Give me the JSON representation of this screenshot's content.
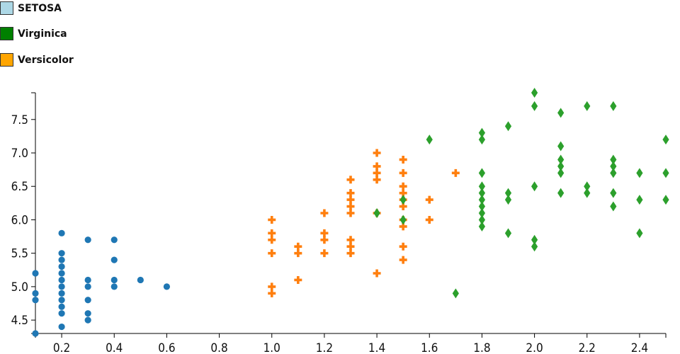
{
  "legend": [
    {
      "label": "SETOSA",
      "color": "#add8e6"
    },
    {
      "label": "Virginica",
      "color": "#008000"
    },
    {
      "label": "Versicolor",
      "color": "#ffa500"
    }
  ],
  "chart_data": {
    "type": "scatter",
    "title": "",
    "xlabel": "",
    "ylabel": "",
    "xlim": [
      0.1,
      2.5
    ],
    "ylim": [
      4.3,
      7.9
    ],
    "xticks": [
      "0.2",
      "0.4",
      "0.6",
      "0.8",
      "1.0",
      "1.2",
      "1.4",
      "1.6",
      "1.8",
      "2.0",
      "2.2",
      "2.4"
    ],
    "yticks": [
      "4.5",
      "5.0",
      "5.5",
      "6.0",
      "6.5",
      "7.0",
      "7.5"
    ],
    "series": [
      {
        "name": "SETOSA",
        "marker": "circle",
        "color": "#1f77b4",
        "points": [
          [
            0.1,
            4.3
          ],
          [
            0.1,
            4.8
          ],
          [
            0.1,
            4.9
          ],
          [
            0.1,
            5.2
          ],
          [
            0.2,
            4.4
          ],
          [
            0.2,
            4.6
          ],
          [
            0.2,
            4.7
          ],
          [
            0.2,
            4.8
          ],
          [
            0.2,
            4.9
          ],
          [
            0.2,
            5.0
          ],
          [
            0.2,
            5.1
          ],
          [
            0.2,
            5.2
          ],
          [
            0.2,
            5.3
          ],
          [
            0.2,
            5.4
          ],
          [
            0.2,
            5.5
          ],
          [
            0.2,
            5.8
          ],
          [
            0.3,
            4.5
          ],
          [
            0.3,
            4.6
          ],
          [
            0.3,
            4.8
          ],
          [
            0.3,
            5.0
          ],
          [
            0.3,
            5.1
          ],
          [
            0.3,
            5.7
          ],
          [
            0.4,
            5.0
          ],
          [
            0.4,
            5.1
          ],
          [
            0.4,
            5.4
          ],
          [
            0.4,
            5.7
          ],
          [
            0.5,
            5.1
          ],
          [
            0.6,
            5.0
          ]
        ]
      },
      {
        "name": "Versicolor",
        "marker": "plus",
        "color": "#ff7f0e",
        "points": [
          [
            1.0,
            4.9
          ],
          [
            1.0,
            5.0
          ],
          [
            1.0,
            5.5
          ],
          [
            1.0,
            5.7
          ],
          [
            1.0,
            5.8
          ],
          [
            1.0,
            6.0
          ],
          [
            1.1,
            5.1
          ],
          [
            1.1,
            5.5
          ],
          [
            1.1,
            5.6
          ],
          [
            1.2,
            5.5
          ],
          [
            1.2,
            5.7
          ],
          [
            1.2,
            5.8
          ],
          [
            1.2,
            6.1
          ],
          [
            1.3,
            5.5
          ],
          [
            1.3,
            5.6
          ],
          [
            1.3,
            5.7
          ],
          [
            1.3,
            6.1
          ],
          [
            1.3,
            6.2
          ],
          [
            1.3,
            6.3
          ],
          [
            1.3,
            6.4
          ],
          [
            1.3,
            6.6
          ],
          [
            1.4,
            5.2
          ],
          [
            1.4,
            6.1
          ],
          [
            1.4,
            6.6
          ],
          [
            1.4,
            6.7
          ],
          [
            1.4,
            6.8
          ],
          [
            1.4,
            7.0
          ],
          [
            1.5,
            5.4
          ],
          [
            1.5,
            5.6
          ],
          [
            1.5,
            5.9
          ],
          [
            1.5,
            6.0
          ],
          [
            1.5,
            6.2
          ],
          [
            1.5,
            6.3
          ],
          [
            1.5,
            6.4
          ],
          [
            1.5,
            6.5
          ],
          [
            1.5,
            6.7
          ],
          [
            1.5,
            6.9
          ],
          [
            1.6,
            6.0
          ],
          [
            1.6,
            6.3
          ],
          [
            1.7,
            6.7
          ]
        ]
      },
      {
        "name": "Virginica",
        "marker": "diamond",
        "color": "#2ca02c",
        "points": [
          [
            1.4,
            6.1
          ],
          [
            1.5,
            6.0
          ],
          [
            1.5,
            6.3
          ],
          [
            1.6,
            7.2
          ],
          [
            1.7,
            4.9
          ],
          [
            1.8,
            5.9
          ],
          [
            1.8,
            6.0
          ],
          [
            1.8,
            6.1
          ],
          [
            1.8,
            6.2
          ],
          [
            1.8,
            6.3
          ],
          [
            1.8,
            6.4
          ],
          [
            1.8,
            6.5
          ],
          [
            1.8,
            6.7
          ],
          [
            1.8,
            7.2
          ],
          [
            1.8,
            7.3
          ],
          [
            1.9,
            5.8
          ],
          [
            1.9,
            6.3
          ],
          [
            1.9,
            6.4
          ],
          [
            1.9,
            7.4
          ],
          [
            2.0,
            5.6
          ],
          [
            2.0,
            5.7
          ],
          [
            2.0,
            6.5
          ],
          [
            2.0,
            7.7
          ],
          [
            2.0,
            7.9
          ],
          [
            2.1,
            6.4
          ],
          [
            2.1,
            6.7
          ],
          [
            2.1,
            6.8
          ],
          [
            2.1,
            6.9
          ],
          [
            2.1,
            7.1
          ],
          [
            2.1,
            7.6
          ],
          [
            2.2,
            6.4
          ],
          [
            2.2,
            6.5
          ],
          [
            2.2,
            7.7
          ],
          [
            2.3,
            6.2
          ],
          [
            2.3,
            6.4
          ],
          [
            2.3,
            6.7
          ],
          [
            2.3,
            6.8
          ],
          [
            2.3,
            6.9
          ],
          [
            2.3,
            7.7
          ],
          [
            2.4,
            5.8
          ],
          [
            2.4,
            6.3
          ],
          [
            2.4,
            6.7
          ],
          [
            2.5,
            6.3
          ],
          [
            2.5,
            6.7
          ],
          [
            2.5,
            7.2
          ]
        ]
      }
    ]
  }
}
